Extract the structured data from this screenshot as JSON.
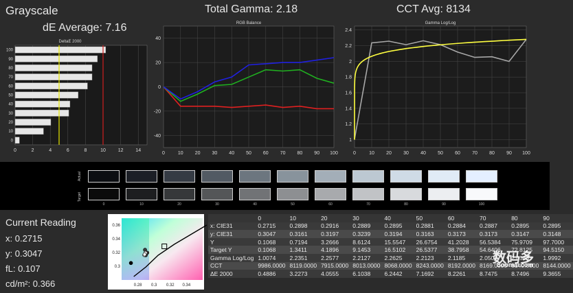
{
  "headers": {
    "grayscale": "Grayscale",
    "de_average": "dE Average: 7.16",
    "total_gamma": "Total Gamma: 2.18",
    "cct_avg": "CCT Avg: 8134"
  },
  "current_reading": {
    "title": "Current Reading",
    "x": "x: 0.2715",
    "y": "y: 0.3047",
    "fl": "fL: 0.107",
    "cd": "cd/m²: 0.366"
  },
  "swatches": {
    "actual_label": "Actual",
    "target_label": "Target",
    "labels": [
      "0",
      "10",
      "20",
      "30",
      "40",
      "50",
      "60",
      "70",
      "80",
      "90",
      "100"
    ],
    "actual_colors": [
      "#0c0e12",
      "#1c1f26",
      "#353b44",
      "#525a63",
      "#6c767f",
      "#88939c",
      "#a3aeb8",
      "#bcc8d2",
      "#cfdbe6",
      "#e0ebf6",
      "#e4efff"
    ],
    "target_colors": [
      "#0b0b0b",
      "#1d1e20",
      "#36383a",
      "#545658",
      "#717376",
      "#8d8f92",
      "#a8aaad",
      "#c1c3c6",
      "#d8dadd",
      "#eceef1",
      "#f8f9fb"
    ]
  },
  "table": {
    "header": [
      "",
      "0",
      "10",
      "20",
      "30",
      "40",
      "50",
      "60",
      "70",
      "80",
      "90"
    ],
    "rows": [
      [
        "x: CIE31",
        "0.2715",
        "0.2898",
        "0.2916",
        "0.2889",
        "0.2895",
        "0.2881",
        "0.2884",
        "0.2887",
        "0.2895",
        "0.2895"
      ],
      [
        "y: CIE31",
        "0.3047",
        "0.3161",
        "0.3197",
        "0.3239",
        "0.3194",
        "0.3163",
        "0.3173",
        "0.3173",
        "0.3147",
        "0.3148"
      ],
      [
        "Y",
        "0.1068",
        "0.7194",
        "3.2666",
        "8.6124",
        "15.5547",
        "26.6754",
        "41.2028",
        "56.5384",
        "75.9709",
        "97.7000"
      ],
      [
        "Target Y",
        "0.1068",
        "1.3411",
        "4.1896",
        "9.1453",
        "16.5102",
        "26.5377",
        "38.7958",
        "54.6406",
        "72.8125",
        "94.5150"
      ],
      [
        "Gamma Log/Log",
        "1.0074",
        "2.2351",
        "2.2577",
        "2.2127",
        "2.2625",
        "2.2123",
        "2.1185",
        "2.0503",
        "2.0583",
        "1.9992"
      ],
      [
        "CCT",
        "9986.0000",
        "8119.0000",
        "7915.0000",
        "8013.0000",
        "8068.0000",
        "8243.0000",
        "8192.0000",
        "8169.0000",
        "8140.0000",
        "8144.0000"
      ],
      [
        "ΔE 2000",
        "0.4886",
        "3.2273",
        "4.0555",
        "6.1038",
        "6.2442",
        "7.1692",
        "8.2261",
        "8.7475",
        "8.7496",
        "9.3655"
      ]
    ]
  },
  "chart_data": [
    {
      "type": "bar",
      "orientation": "horizontal",
      "title": "DeltaE 2000",
      "categories": [
        "100",
        "90",
        "80",
        "70",
        "60",
        "50",
        "40",
        "30",
        "20",
        "10",
        "0"
      ],
      "values": [
        10.3,
        9.36,
        8.75,
        8.75,
        8.23,
        7.17,
        6.24,
        6.1,
        4.06,
        3.23,
        0.49
      ],
      "xlim": [
        0,
        15
      ],
      "xticks": [
        "0",
        "2",
        "4",
        "6",
        "8",
        "10",
        "12",
        "14"
      ],
      "reference_lines": [
        {
          "value": 5,
          "color": "#e8e800"
        },
        {
          "value": 10,
          "color": "#d02020"
        }
      ]
    },
    {
      "type": "line",
      "title": "RGB Balance",
      "x": [
        0,
        10,
        20,
        30,
        40,
        50,
        60,
        70,
        80,
        90,
        100
      ],
      "series": [
        {
          "color": "#e02020",
          "values": [
            0,
            -16,
            -16,
            -16,
            -17,
            -16,
            -15,
            -17,
            -16,
            -18,
            -18
          ]
        },
        {
          "color": "#20b020",
          "values": [
            0,
            -12,
            -6,
            1,
            2,
            8,
            14,
            13,
            14,
            7,
            3
          ]
        },
        {
          "color": "#2020e0",
          "values": [
            0,
            -10,
            -4,
            4,
            8,
            18,
            19,
            20,
            20,
            22,
            24
          ]
        }
      ],
      "ylim": [
        -50,
        50
      ],
      "yticks": [
        "-40",
        "-20",
        "0",
        "20",
        "40"
      ],
      "xticks": [
        "0",
        "10",
        "20",
        "30",
        "40",
        "50",
        "60",
        "70",
        "80",
        "90",
        "100"
      ]
    },
    {
      "type": "line",
      "title": "Gamma Log/Log",
      "x": [
        0,
        10,
        20,
        30,
        40,
        50,
        60,
        70,
        80,
        90,
        100
      ],
      "series": [
        {
          "color": "#a8a8a8",
          "values": [
            1.0074,
            2.2351,
            2.2577,
            2.2127,
            2.2625,
            2.2123,
            2.1185,
            2.0503,
            2.0583,
            1.9992,
            2.28
          ]
        },
        {
          "color": "#ffff40",
          "curve": "target",
          "values": [
            1.0,
            1.86,
            2.02,
            2.1,
            2.15,
            2.18,
            2.2,
            2.22,
            2.24,
            2.26,
            2.28
          ]
        }
      ],
      "ylim": [
        0.9,
        2.45
      ],
      "yticks": [
        "1",
        "1.2",
        "1.4",
        "1.6",
        "1.8",
        "2",
        "2.2",
        "2.4"
      ],
      "xticks": [
        "0",
        "10",
        "20",
        "30",
        "40",
        "50",
        "60",
        "70",
        "80",
        "90",
        "100"
      ]
    },
    {
      "type": "scatter",
      "title": "",
      "xlim": [
        0.26,
        0.36
      ],
      "ylim": [
        0.28,
        0.37
      ],
      "xticks": [
        "0.28",
        "0.3",
        "0.32",
        "0.34"
      ],
      "yticks": [
        "0.3",
        "0.32",
        "0.34",
        "0.36"
      ],
      "points": [
        {
          "x": 0.2715,
          "y": 0.3047,
          "style": "black"
        },
        {
          "x": 0.2898,
          "y": 0.3161,
          "style": "dark"
        },
        {
          "x": 0.2916,
          "y": 0.3197,
          "style": "dark"
        },
        {
          "x": 0.2889,
          "y": 0.3239,
          "style": "dark"
        },
        {
          "x": 0.2895,
          "y": 0.3194,
          "style": "light"
        },
        {
          "x": 0.2881,
          "y": 0.3163,
          "style": "light"
        },
        {
          "x": 0.2884,
          "y": 0.3173,
          "style": "light"
        }
      ],
      "target": {
        "x": 0.3127,
        "y": 0.329
      },
      "locus": [
        [
          0.275,
          0.285
        ],
        [
          0.29,
          0.299
        ],
        [
          0.305,
          0.316
        ],
        [
          0.325,
          0.332
        ],
        [
          0.345,
          0.346
        ],
        [
          0.365,
          0.36
        ]
      ]
    }
  ],
  "watermark": {
    "text": "数码多",
    "subtext": "Soomal.com"
  }
}
